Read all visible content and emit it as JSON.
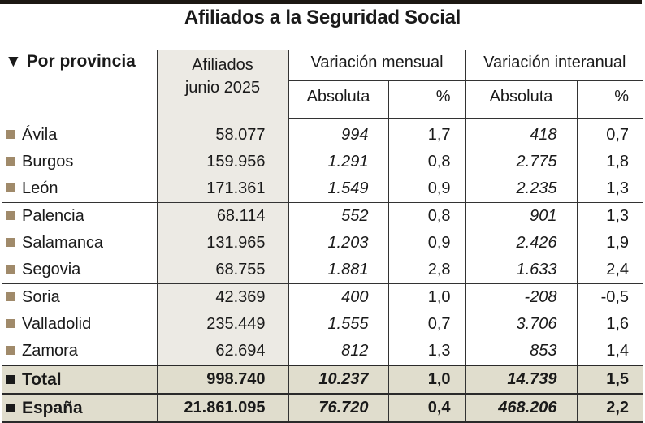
{
  "title": "Afiliados a la Seguridad Social",
  "header": {
    "section_label": "Por provincia",
    "section_icon": "triangle-down-icon",
    "afiliados_line1": "Afiliados",
    "afiliados_line2": "junio 2025",
    "mensual_group": "Variación mensual",
    "interanual_group": "Variación interanual",
    "absoluta": "Absoluta",
    "percent": "%"
  },
  "colors": {
    "bullet_province": "#a08a6a",
    "bullet_summary": "#1a1a1a",
    "afiliados_column_bg": "#eceae4",
    "summary_bg": "#e0ddcd"
  },
  "rows": [
    {
      "name": "Ávila",
      "afiliados": "58.077",
      "mensual_abs": "994",
      "mensual_pct": "1,7",
      "interanual_abs": "418",
      "interanual_pct": "0,7"
    },
    {
      "name": "Burgos",
      "afiliados": "159.956",
      "mensual_abs": "1.291",
      "mensual_pct": "0,8",
      "interanual_abs": "2.775",
      "interanual_pct": "1,8"
    },
    {
      "name": "León",
      "afiliados": "171.361",
      "mensual_abs": "1.549",
      "mensual_pct": "0,9",
      "interanual_abs": "2.235",
      "interanual_pct": "1,3"
    },
    {
      "name": "Palencia",
      "afiliados": "68.114",
      "mensual_abs": "552",
      "mensual_pct": "0,8",
      "interanual_abs": "901",
      "interanual_pct": "1,3"
    },
    {
      "name": "Salamanca",
      "afiliados": "131.965",
      "mensual_abs": "1.203",
      "mensual_pct": "0,9",
      "interanual_abs": "2.426",
      "interanual_pct": "1,9"
    },
    {
      "name": "Segovia",
      "afiliados": "68.755",
      "mensual_abs": "1.881",
      "mensual_pct": "2,8",
      "interanual_abs": "1.633",
      "interanual_pct": "2,4"
    },
    {
      "name": "Soria",
      "afiliados": "42.369",
      "mensual_abs": "400",
      "mensual_pct": "1,0",
      "interanual_abs": "-208",
      "interanual_pct": "-0,5"
    },
    {
      "name": "Valladolid",
      "afiliados": "235.449",
      "mensual_abs": "1.555",
      "mensual_pct": "0,7",
      "interanual_abs": "3.706",
      "interanual_pct": "1,6"
    },
    {
      "name": "Zamora",
      "afiliados": "62.694",
      "mensual_abs": "812",
      "mensual_pct": "1,3",
      "interanual_abs": "853",
      "interanual_pct": "1,4"
    }
  ],
  "summary": [
    {
      "name": "Total",
      "afiliados": "998.740",
      "mensual_abs": "10.237",
      "mensual_pct": "1,0",
      "interanual_abs": "14.739",
      "interanual_pct": "1,5"
    },
    {
      "name": "España",
      "afiliados": "21.861.095",
      "mensual_abs": "76.720",
      "mensual_pct": "0,4",
      "interanual_abs": "468.206",
      "interanual_pct": "2,2"
    }
  ]
}
